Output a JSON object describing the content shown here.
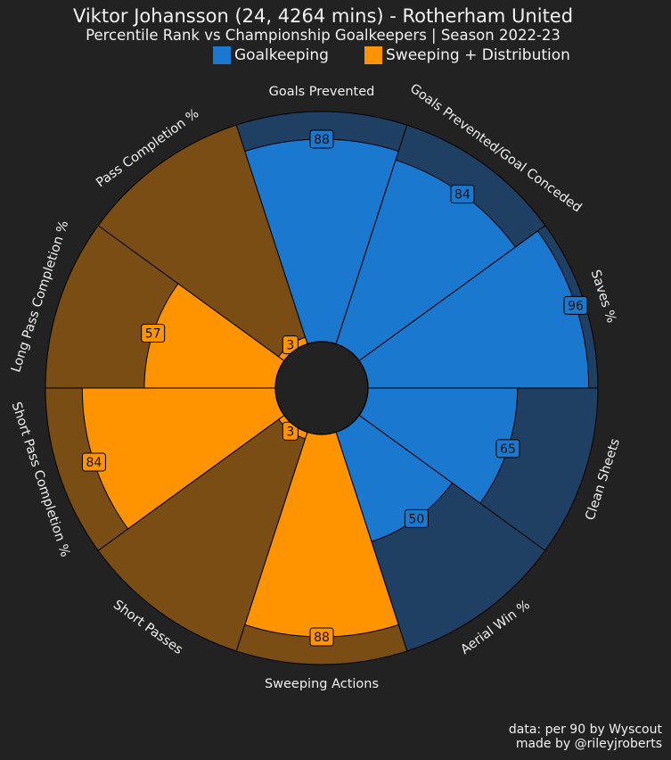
{
  "header": {
    "title": "Viktor Johansson (24, 4264 mins) - Rotherham United",
    "subtitle": "Percentile Rank vs Championship Goalkeepers | Season 2022-23"
  },
  "legend": [
    {
      "label": "Goalkeeping",
      "color": "#1a78cf"
    },
    {
      "label": "Sweeping + Distribution",
      "color": "#ff9300"
    }
  ],
  "colors": {
    "goalkeeping": "#1a78cf",
    "goalkeeping_bg": "#1f3f63",
    "distribution": "#ff9300",
    "distribution_bg": "#7a4d14",
    "background": "#222222",
    "center": "#222222"
  },
  "chart_data": {
    "type": "pizza",
    "title": "Viktor Johansson (24, 4264 mins) - Rotherham United",
    "subtitle": "Percentile Rank vs Championship Goalkeepers | Season 2022-23",
    "range": [
      0,
      100
    ],
    "params": [
      {
        "name": "Goals Prevented",
        "value": 88,
        "group": "Goalkeeping"
      },
      {
        "name": "Goals Prevented/Goal Conceded",
        "value": 84,
        "group": "Goalkeeping"
      },
      {
        "name": "Saves %",
        "value": 96,
        "group": "Goalkeeping"
      },
      {
        "name": "Clean Sheets",
        "value": 65,
        "group": "Goalkeeping"
      },
      {
        "name": "Aerial Win %",
        "value": 50,
        "group": "Goalkeeping"
      },
      {
        "name": "Sweeping Actions",
        "value": 88,
        "group": "Sweeping + Distribution"
      },
      {
        "name": "Short Passes",
        "value": 3,
        "group": "Sweeping + Distribution"
      },
      {
        "name": "Short Pass Completion %",
        "value": 84,
        "group": "Sweeping + Distribution"
      },
      {
        "name": "Long Pass Completion %",
        "value": 57,
        "group": "Sweeping + Distribution"
      },
      {
        "name": "Pass Completion %",
        "value": 3,
        "group": "Sweeping + Distribution"
      }
    ]
  },
  "footer": {
    "line1": "data: per 90 by Wyscout",
    "line2": "made by @rileyjroberts"
  }
}
